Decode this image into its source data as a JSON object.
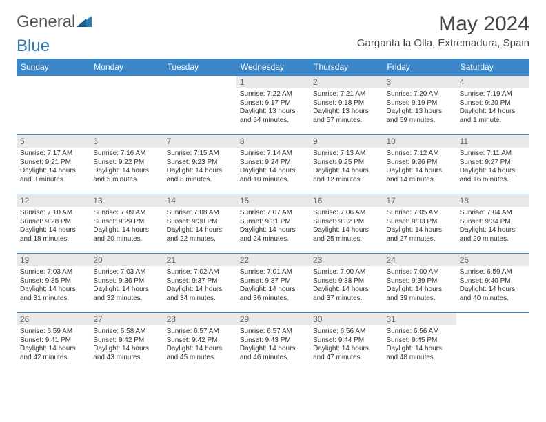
{
  "brand": {
    "part1": "General",
    "part2": "Blue"
  },
  "title": "May 2024",
  "location": "Garganta la Olla, Extremadura, Spain",
  "colors": {
    "header_bg": "#3a86c8",
    "header_fg": "#ffffff",
    "daynum_bg": "#e9e9e9",
    "daynum_fg": "#666666",
    "border": "#3a86c8",
    "logo_blue": "#2a7ab0"
  },
  "columns": [
    "Sunday",
    "Monday",
    "Tuesday",
    "Wednesday",
    "Thursday",
    "Friday",
    "Saturday"
  ],
  "weeks": [
    [
      {
        "blank": true
      },
      {
        "blank": true
      },
      {
        "blank": true
      },
      {
        "day": "1",
        "sunrise": "7:22 AM",
        "sunset": "9:17 PM",
        "daylight": "13 hours and 54 minutes."
      },
      {
        "day": "2",
        "sunrise": "7:21 AM",
        "sunset": "9:18 PM",
        "daylight": "13 hours and 57 minutes."
      },
      {
        "day": "3",
        "sunrise": "7:20 AM",
        "sunset": "9:19 PM",
        "daylight": "13 hours and 59 minutes."
      },
      {
        "day": "4",
        "sunrise": "7:19 AM",
        "sunset": "9:20 PM",
        "daylight": "14 hours and 1 minute."
      }
    ],
    [
      {
        "day": "5",
        "sunrise": "7:17 AM",
        "sunset": "9:21 PM",
        "daylight": "14 hours and 3 minutes."
      },
      {
        "day": "6",
        "sunrise": "7:16 AM",
        "sunset": "9:22 PM",
        "daylight": "14 hours and 5 minutes."
      },
      {
        "day": "7",
        "sunrise": "7:15 AM",
        "sunset": "9:23 PM",
        "daylight": "14 hours and 8 minutes."
      },
      {
        "day": "8",
        "sunrise": "7:14 AM",
        "sunset": "9:24 PM",
        "daylight": "14 hours and 10 minutes."
      },
      {
        "day": "9",
        "sunrise": "7:13 AM",
        "sunset": "9:25 PM",
        "daylight": "14 hours and 12 minutes."
      },
      {
        "day": "10",
        "sunrise": "7:12 AM",
        "sunset": "9:26 PM",
        "daylight": "14 hours and 14 minutes."
      },
      {
        "day": "11",
        "sunrise": "7:11 AM",
        "sunset": "9:27 PM",
        "daylight": "14 hours and 16 minutes."
      }
    ],
    [
      {
        "day": "12",
        "sunrise": "7:10 AM",
        "sunset": "9:28 PM",
        "daylight": "14 hours and 18 minutes."
      },
      {
        "day": "13",
        "sunrise": "7:09 AM",
        "sunset": "9:29 PM",
        "daylight": "14 hours and 20 minutes."
      },
      {
        "day": "14",
        "sunrise": "7:08 AM",
        "sunset": "9:30 PM",
        "daylight": "14 hours and 22 minutes."
      },
      {
        "day": "15",
        "sunrise": "7:07 AM",
        "sunset": "9:31 PM",
        "daylight": "14 hours and 24 minutes."
      },
      {
        "day": "16",
        "sunrise": "7:06 AM",
        "sunset": "9:32 PM",
        "daylight": "14 hours and 25 minutes."
      },
      {
        "day": "17",
        "sunrise": "7:05 AM",
        "sunset": "9:33 PM",
        "daylight": "14 hours and 27 minutes."
      },
      {
        "day": "18",
        "sunrise": "7:04 AM",
        "sunset": "9:34 PM",
        "daylight": "14 hours and 29 minutes."
      }
    ],
    [
      {
        "day": "19",
        "sunrise": "7:03 AM",
        "sunset": "9:35 PM",
        "daylight": "14 hours and 31 minutes."
      },
      {
        "day": "20",
        "sunrise": "7:03 AM",
        "sunset": "9:36 PM",
        "daylight": "14 hours and 32 minutes."
      },
      {
        "day": "21",
        "sunrise": "7:02 AM",
        "sunset": "9:37 PM",
        "daylight": "14 hours and 34 minutes."
      },
      {
        "day": "22",
        "sunrise": "7:01 AM",
        "sunset": "9:37 PM",
        "daylight": "14 hours and 36 minutes."
      },
      {
        "day": "23",
        "sunrise": "7:00 AM",
        "sunset": "9:38 PM",
        "daylight": "14 hours and 37 minutes."
      },
      {
        "day": "24",
        "sunrise": "7:00 AM",
        "sunset": "9:39 PM",
        "daylight": "14 hours and 39 minutes."
      },
      {
        "day": "25",
        "sunrise": "6:59 AM",
        "sunset": "9:40 PM",
        "daylight": "14 hours and 40 minutes."
      }
    ],
    [
      {
        "day": "26",
        "sunrise": "6:59 AM",
        "sunset": "9:41 PM",
        "daylight": "14 hours and 42 minutes."
      },
      {
        "day": "27",
        "sunrise": "6:58 AM",
        "sunset": "9:42 PM",
        "daylight": "14 hours and 43 minutes."
      },
      {
        "day": "28",
        "sunrise": "6:57 AM",
        "sunset": "9:42 PM",
        "daylight": "14 hours and 45 minutes."
      },
      {
        "day": "29",
        "sunrise": "6:57 AM",
        "sunset": "9:43 PM",
        "daylight": "14 hours and 46 minutes."
      },
      {
        "day": "30",
        "sunrise": "6:56 AM",
        "sunset": "9:44 PM",
        "daylight": "14 hours and 47 minutes."
      },
      {
        "day": "31",
        "sunrise": "6:56 AM",
        "sunset": "9:45 PM",
        "daylight": "14 hours and 48 minutes."
      },
      {
        "blank": true
      }
    ]
  ],
  "labels": {
    "sunrise": "Sunrise:",
    "sunset": "Sunset:",
    "daylight": "Daylight:"
  }
}
